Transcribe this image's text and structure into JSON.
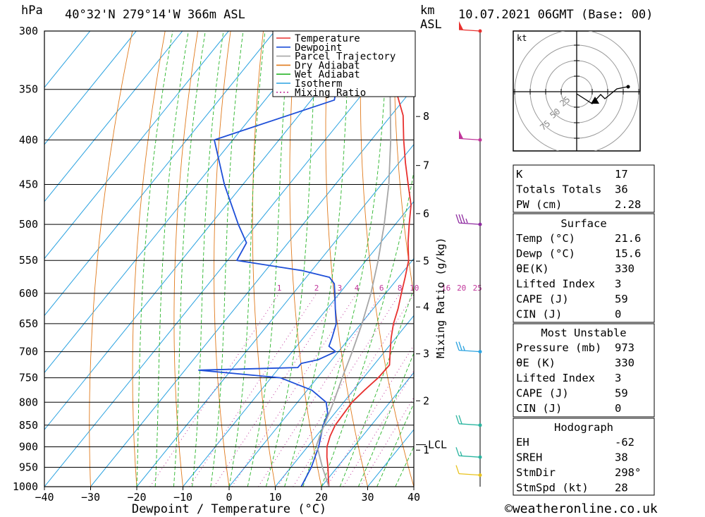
{
  "header": {
    "unit_pressure": "hPa",
    "location": "40°32'N  279°14'W  366m  ASL",
    "km_label": "km",
    "asl_label": "ASL",
    "datetime": "10.07.2021  06GMT  (Base: 00)"
  },
  "legend": [
    {
      "label": "Temperature",
      "color": "#e8302e",
      "style": "solid"
    },
    {
      "label": "Dewpoint",
      "color": "#1e4fd8",
      "style": "solid"
    },
    {
      "label": "Parcel Trajectory",
      "color": "#a6a6a6",
      "style": "solid"
    },
    {
      "label": "Dry Adiabat",
      "color": "#e07a1c",
      "style": "solid"
    },
    {
      "label": "Wet Adiabat",
      "color": "#2ab52a",
      "style": "solid"
    },
    {
      "label": "Isotherm",
      "color": "#2aa2e0",
      "style": "solid"
    },
    {
      "label": "Mixing Ratio",
      "color": "#c0349a",
      "style": "dotted"
    }
  ],
  "chart_data": {
    "type": "line",
    "subtype": "skew-T log-p sounding",
    "xlabel": "Dewpoint / Temperature (°C)",
    "ylabel": "hPa",
    "xlim": [
      -40,
      40
    ],
    "ylim": [
      1000,
      300
    ],
    "x_ticks": [
      -40,
      -30,
      -20,
      -10,
      0,
      10,
      20,
      30,
      40
    ],
    "y_ticks": [
      300,
      350,
      400,
      450,
      500,
      550,
      600,
      650,
      700,
      750,
      800,
      850,
      900,
      950,
      1000
    ],
    "km_ticks": [
      {
        "km": "1",
        "p": 908
      },
      {
        "km": "2",
        "p": 797
      },
      {
        "km": "3",
        "p": 704
      },
      {
        "km": "4",
        "p": 622
      },
      {
        "km": "5",
        "p": 551
      },
      {
        "km": "6",
        "p": 486
      },
      {
        "km": "7",
        "p": 428
      },
      {
        "km": "8",
        "p": 376
      }
    ],
    "lcl": {
      "label": "LCL",
      "p": 895
    },
    "mixing_ratio_label": "Mixing Ratio (g/kg)",
    "mixing_ratio_ticks": [
      "1",
      "2",
      "3",
      "4",
      "6",
      "8",
      "10",
      "16",
      "20",
      "25"
    ],
    "series": [
      {
        "name": "Temperature",
        "points": [
          [
            1000,
            21.6
          ],
          [
            975,
            19.8
          ],
          [
            950,
            18.0
          ],
          [
            925,
            16.0
          ],
          [
            900,
            14.2
          ],
          [
            875,
            13.0
          ],
          [
            850,
            12.2
          ],
          [
            825,
            12.0
          ],
          [
            800,
            11.8
          ],
          [
            775,
            12.4
          ],
          [
            750,
            13.2
          ],
          [
            725,
            13.4
          ],
          [
            700,
            11.2
          ],
          [
            675,
            9.0
          ],
          [
            650,
            7.0
          ],
          [
            625,
            5.4
          ],
          [
            600,
            3.4
          ],
          [
            575,
            1.4
          ],
          [
            550,
            -0.8
          ],
          [
            525,
            -4.0
          ],
          [
            500,
            -7.0
          ],
          [
            475,
            -10.0
          ],
          [
            450,
            -14.2
          ],
          [
            425,
            -18.6
          ],
          [
            400,
            -23.0
          ],
          [
            375,
            -27.4
          ],
          [
            350,
            -33.6
          ],
          [
            325,
            -39.8
          ],
          [
            300,
            -46.0
          ]
        ]
      },
      {
        "name": "Dewpoint",
        "points": [
          [
            1000,
            15.6
          ],
          [
            975,
            15.0
          ],
          [
            950,
            14.4
          ],
          [
            925,
            13.4
          ],
          [
            900,
            12.4
          ],
          [
            875,
            11.0
          ],
          [
            850,
            9.6
          ],
          [
            825,
            8.6
          ],
          [
            800,
            6.2
          ],
          [
            775,
            1.0
          ],
          [
            750,
            -8.0
          ],
          [
            735,
            -27.0
          ],
          [
            730,
            -6.0
          ],
          [
            722,
            -6.0
          ],
          [
            715,
            -3.0
          ],
          [
            700,
            -0.6
          ],
          [
            690,
            -3.0
          ],
          [
            675,
            -3.8
          ],
          [
            650,
            -5.4
          ],
          [
            625,
            -8.2
          ],
          [
            600,
            -11.0
          ],
          [
            585,
            -12.8
          ],
          [
            575,
            -15.0
          ],
          [
            565,
            -22.0
          ],
          [
            550,
            -38.0
          ],
          [
            525,
            -39.0
          ],
          [
            500,
            -44.0
          ],
          [
            450,
            -54.0
          ],
          [
            400,
            -64.0
          ],
          [
            360,
            -45.0
          ],
          [
            340,
            -48.0
          ],
          [
            300,
            -57.0
          ]
        ]
      },
      {
        "name": "Parcel Trajectory",
        "points": [
          [
            1000,
            21.6
          ],
          [
            950,
            16.8
          ],
          [
            895,
            11.6
          ],
          [
            850,
            9.8
          ],
          [
            800,
            7.8
          ],
          [
            750,
            5.4
          ],
          [
            700,
            3.0
          ],
          [
            650,
            0.2
          ],
          [
            600,
            -3.2
          ],
          [
            550,
            -7.4
          ],
          [
            500,
            -12.4
          ],
          [
            450,
            -18.4
          ],
          [
            400,
            -25.8
          ],
          [
            350,
            -34.8
          ],
          [
            300,
            -45.6
          ]
        ]
      }
    ]
  },
  "wind_barbs": [
    {
      "p": 300,
      "speed_kt": 50,
      "color": "#e8302e"
    },
    {
      "p": 400,
      "speed_kt": 50,
      "color": "#c0349a"
    },
    {
      "p": 500,
      "speed_kt": 35,
      "color": "#8e2aa0"
    },
    {
      "p": 700,
      "speed_kt": 25,
      "color": "#2aa2e0"
    },
    {
      "p": 850,
      "speed_kt": 20,
      "color": "#2ab5a0"
    },
    {
      "p": 925,
      "speed_kt": 15,
      "color": "#2ab5a0"
    },
    {
      "p": 970,
      "speed_kt": 10,
      "color": "#e8c21c"
    }
  ],
  "hodograph": {
    "unit": "kt",
    "rings": [
      "25",
      "50",
      "75"
    ]
  },
  "indices": {
    "general": [
      {
        "label": "K",
        "value": "17"
      },
      {
        "label": "Totals Totals",
        "value": "36"
      },
      {
        "label": "PW (cm)",
        "value": "2.28"
      }
    ],
    "surface_title": "Surface",
    "surface": [
      {
        "label": "Temp (°C)",
        "value": "21.6"
      },
      {
        "label": "Dewp (°C)",
        "value": "15.6"
      },
      {
        "label": "θE(K)",
        "value": "330"
      },
      {
        "label": "Lifted Index",
        "value": "3"
      },
      {
        "label": "CAPE (J)",
        "value": "59"
      },
      {
        "label": "CIN (J)",
        "value": "0"
      }
    ],
    "mu_title": "Most Unstable",
    "mu": [
      {
        "label": "Pressure (mb)",
        "value": "973"
      },
      {
        "label": "θE (K)",
        "value": "330"
      },
      {
        "label": "Lifted Index",
        "value": "3"
      },
      {
        "label": "CAPE (J)",
        "value": "59"
      },
      {
        "label": "CIN (J)",
        "value": "0"
      }
    ],
    "hodo_title": "Hodograph",
    "hodo": [
      {
        "label": "EH",
        "value": "-62"
      },
      {
        "label": "SREH",
        "value": "38"
      },
      {
        "label": "StmDir",
        "value": "298°"
      },
      {
        "label": "StmSpd (kt)",
        "value": "28"
      }
    ]
  },
  "footer": {
    "copyright": "©weatheronline.co.uk"
  }
}
